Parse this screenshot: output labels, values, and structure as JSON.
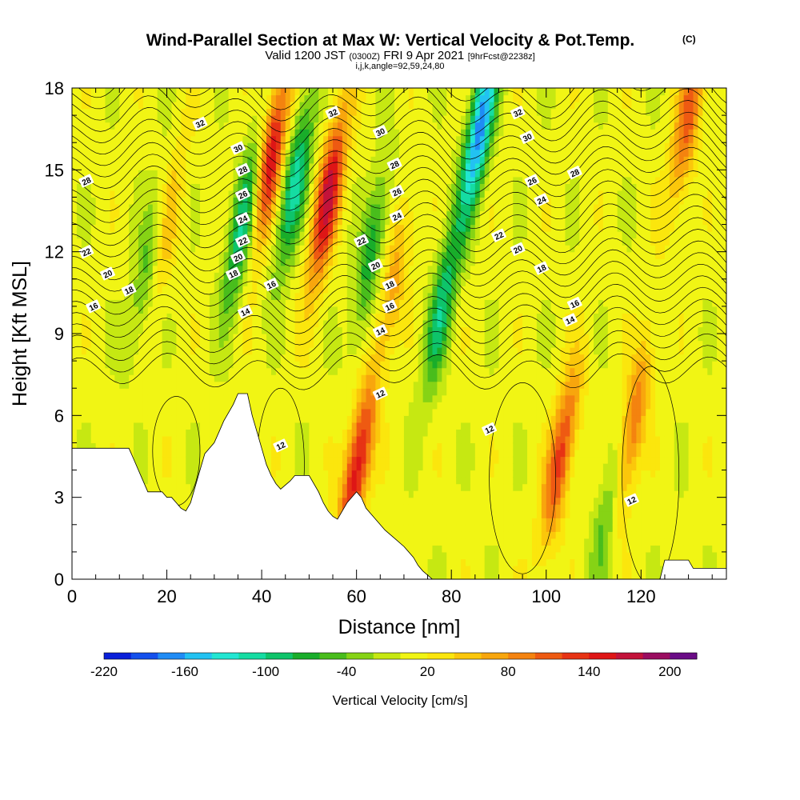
{
  "title": {
    "main": "Wind-Parallel Section at Max W: Vertical Velocity & Pot.Temp.",
    "copyright": "(C)",
    "valid_a": "Valid 1200 JST",
    "valid_b": "(0300Z)",
    "valid_c": "FRI 9 Apr 2021",
    "valid_d": "[9hrFcst@2238z]",
    "indices": "i,j,k,angle=92,59,24,80"
  },
  "chart_data": {
    "type": "heatmap",
    "xlabel": "Distance [nm]",
    "ylabel": "Height [Kft MSL]",
    "xlim": [
      0,
      138
    ],
    "ylim": [
      0,
      18
    ],
    "x_ticks": [
      0,
      20,
      40,
      60,
      80,
      100,
      120
    ],
    "y_ticks": [
      0,
      3,
      6,
      9,
      12,
      15,
      18
    ],
    "colorbar": {
      "label": "Vertical Velocity [cm/s]",
      "min": -220,
      "max": 220,
      "step": 20,
      "tick_labels": [
        "-220",
        "-160",
        "-100",
        "-40",
        "20",
        "80",
        "140",
        "200"
      ],
      "tick_values": [
        -220,
        -160,
        -100,
        -40,
        20,
        80,
        140,
        200
      ],
      "colors": [
        "#0a1fd9",
        "#1450ec",
        "#1f8cf5",
        "#22c2f2",
        "#21e6d2",
        "#15dca2",
        "#0ec46a",
        "#19ad2a",
        "#49bd1c",
        "#86d315",
        "#c6e812",
        "#f1f514",
        "#fbe60d",
        "#fbc70b",
        "#f8a60d",
        "#f4830f",
        "#ee5a12",
        "#e73314",
        "#de1616",
        "#c3133a",
        "#9a0d60",
        "#6a0b86"
      ]
    },
    "vertical_velocity_features": [
      {
        "x": 16,
        "y": 11.5,
        "w": -60,
        "note": "green band"
      },
      {
        "x": 20,
        "y": 13.0,
        "w": 50
      },
      {
        "x": 36,
        "y": 13.0,
        "w": -110
      },
      {
        "x": 42,
        "y": 15.5,
        "w": 150
      },
      {
        "x": 47,
        "y": 14.5,
        "w": -120
      },
      {
        "x": 54,
        "y": 14.0,
        "w": 160
      },
      {
        "x": 60,
        "y": 4.0,
        "w": 150
      },
      {
        "x": 63,
        "y": 12.0,
        "w": -80
      },
      {
        "x": 68,
        "y": 11.0,
        "w": 60
      },
      {
        "x": 78,
        "y": 10.0,
        "w": -100
      },
      {
        "x": 86,
        "y": 16.5,
        "w": -180
      },
      {
        "x": 103,
        "y": 4.5,
        "w": 120
      },
      {
        "x": 113,
        "y": 2.5,
        "w": -60
      },
      {
        "x": 118,
        "y": 5.5,
        "w": 100
      },
      {
        "x": 130,
        "y": 17.0,
        "w": 100
      }
    ],
    "theta_contour_labels": [
      {
        "value": "32",
        "x": 27,
        "y": 16.7
      },
      {
        "value": "30",
        "x": 35,
        "y": 15.8
      },
      {
        "value": "28",
        "x": 36,
        "y": 15.0
      },
      {
        "value": "28",
        "x": 3,
        "y": 14.6
      },
      {
        "value": "26",
        "x": 36,
        "y": 14.1
      },
      {
        "value": "24",
        "x": 36,
        "y": 13.2
      },
      {
        "value": "22",
        "x": 36,
        "y": 12.4
      },
      {
        "value": "22",
        "x": 3,
        "y": 12.0
      },
      {
        "value": "20",
        "x": 35,
        "y": 11.8
      },
      {
        "value": "20",
        "x": 7.5,
        "y": 11.2
      },
      {
        "value": "18",
        "x": 34,
        "y": 11.2
      },
      {
        "value": "18",
        "x": 12,
        "y": 10.6
      },
      {
        "value": "16",
        "x": 4.5,
        "y": 10.0
      },
      {
        "value": "16",
        "x": 42,
        "y": 10.8
      },
      {
        "value": "14",
        "x": 36.5,
        "y": 9.8
      },
      {
        "value": "32",
        "x": 55,
        "y": 17.1
      },
      {
        "value": "30",
        "x": 65,
        "y": 16.4
      },
      {
        "value": "28",
        "x": 68,
        "y": 15.2
      },
      {
        "value": "26",
        "x": 68.5,
        "y": 14.2
      },
      {
        "value": "24",
        "x": 68.5,
        "y": 13.3
      },
      {
        "value": "22",
        "x": 61,
        "y": 12.4
      },
      {
        "value": "20",
        "x": 64,
        "y": 11.5
      },
      {
        "value": "18",
        "x": 67,
        "y": 10.8
      },
      {
        "value": "16",
        "x": 67,
        "y": 10.0
      },
      {
        "value": "14",
        "x": 65,
        "y": 9.1
      },
      {
        "value": "32",
        "x": 94,
        "y": 17.1
      },
      {
        "value": "30",
        "x": 96,
        "y": 16.2
      },
      {
        "value": "28",
        "x": 106,
        "y": 14.9
      },
      {
        "value": "26",
        "x": 97,
        "y": 14.6
      },
      {
        "value": "24",
        "x": 99,
        "y": 13.9
      },
      {
        "value": "22",
        "x": 90,
        "y": 12.6
      },
      {
        "value": "20",
        "x": 94,
        "y": 12.1
      },
      {
        "value": "18",
        "x": 99,
        "y": 11.4
      },
      {
        "value": "16",
        "x": 106,
        "y": 10.1
      },
      {
        "value": "14",
        "x": 105,
        "y": 9.5
      },
      {
        "value": "12",
        "x": 65,
        "y": 6.8
      },
      {
        "value": "12",
        "x": 88,
        "y": 5.5
      },
      {
        "value": "12",
        "x": 44,
        "y": 4.9
      },
      {
        "value": "12",
        "x": 118,
        "y": 2.9
      }
    ],
    "terrain_profile": [
      [
        0,
        4.8
      ],
      [
        12,
        4.8
      ],
      [
        13,
        4.4
      ],
      [
        14,
        4.0
      ],
      [
        15,
        3.6
      ],
      [
        16,
        3.2
      ],
      [
        19,
        3.2
      ],
      [
        20,
        3.0
      ],
      [
        21,
        3.0
      ],
      [
        22,
        2.8
      ],
      [
        23,
        2.6
      ],
      [
        24,
        2.5
      ],
      [
        25,
        2.8
      ],
      [
        26,
        3.4
      ],
      [
        27,
        4.0
      ],
      [
        28,
        4.6
      ],
      [
        30,
        5.0
      ],
      [
        31,
        5.4
      ],
      [
        32,
        5.8
      ],
      [
        34,
        6.4
      ],
      [
        35,
        6.8
      ],
      [
        37,
        6.8
      ],
      [
        38,
        6.0
      ],
      [
        39,
        5.4
      ],
      [
        40,
        4.8
      ],
      [
        41,
        4.2
      ],
      [
        42,
        3.8
      ],
      [
        43,
        3.5
      ],
      [
        44,
        3.3
      ],
      [
        46,
        3.6
      ],
      [
        47,
        3.8
      ],
      [
        50,
        3.8
      ],
      [
        52,
        3.2
      ],
      [
        53,
        2.8
      ],
      [
        54,
        2.5
      ],
      [
        55,
        2.3
      ],
      [
        56,
        2.2
      ],
      [
        58,
        2.8
      ],
      [
        60,
        3.2
      ],
      [
        61,
        3.0
      ],
      [
        62,
        2.6
      ],
      [
        64,
        2.2
      ],
      [
        66,
        1.8
      ],
      [
        68,
        1.5
      ],
      [
        70,
        1.2
      ],
      [
        72,
        0.8
      ],
      [
        73,
        0.5
      ],
      [
        74,
        0.3
      ],
      [
        76,
        0.0
      ],
      [
        124,
        0.0
      ],
      [
        125,
        0.7
      ],
      [
        130,
        0.7
      ],
      [
        131,
        0.4
      ],
      [
        138,
        0.4
      ]
    ]
  }
}
